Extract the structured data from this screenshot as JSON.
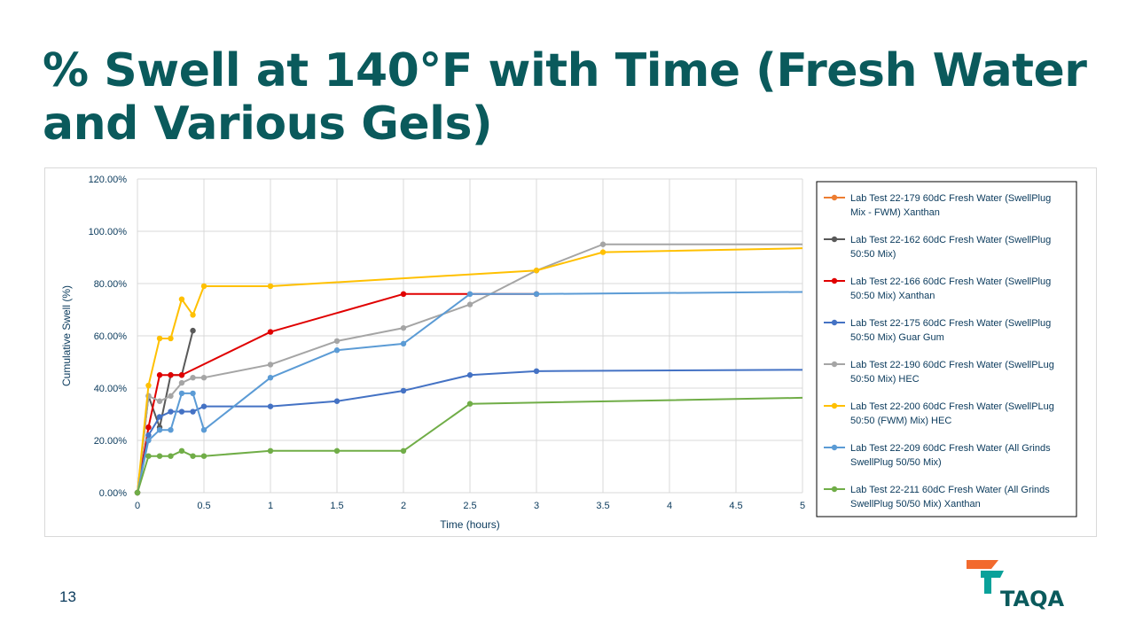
{
  "slide": {
    "title": "% Swell at 140°F with Time (Fresh Water and Various Gels)",
    "page_number": "13",
    "logo_text": "TAQA"
  },
  "chart_data": {
    "type": "line",
    "xlabel": "Time (hours)",
    "ylabel": "Cumulative Swell (%)",
    "xlim": [
      0,
      5
    ],
    "ylim": [
      0,
      120
    ],
    "x_ticks": [
      "0",
      "0.5",
      "1",
      "1.5",
      "2",
      "2.5",
      "3",
      "3.5",
      "4",
      "4.5",
      "5"
    ],
    "y_ticks": [
      "0.00%",
      "20.00%",
      "40.00%",
      "60.00%",
      "80.00%",
      "100.00%",
      "120.00%"
    ],
    "grid": true,
    "legend_position": "right",
    "series": [
      {
        "name": "Lab Test 22-179 60dC Fresh Water (SwellPlug Mix - FWM) Xanthan",
        "color": "#ed7d31",
        "points": [
          [
            0,
            0
          ],
          [
            0.083,
            25
          ]
        ]
      },
      {
        "name": "Lab Test 22-162 60dC Fresh Water (SwellPlug 50:50 Mix)",
        "color": "#595959",
        "points": [
          [
            0,
            0
          ],
          [
            0.083,
            37
          ],
          [
            0.167,
            25
          ],
          [
            0.25,
            45
          ],
          [
            0.333,
            45
          ],
          [
            0.417,
            62
          ]
        ]
      },
      {
        "name": "Lab Test 22-166 60dC Fresh Water (SwellPlug 50:50 Mix) Xanthan",
        "color": "#e00000",
        "points": [
          [
            0,
            0
          ],
          [
            0.083,
            25
          ],
          [
            0.167,
            45
          ],
          [
            0.25,
            45
          ],
          [
            0.333,
            45
          ],
          [
            1,
            61.5
          ],
          [
            2,
            76
          ],
          [
            3,
            76
          ]
        ]
      },
      {
        "name": "Lab Test 22-175 60dC Fresh Water (SwellPlug 50:50 Mix) Guar Gum",
        "color": "#4472c4",
        "points": [
          [
            0,
            0
          ],
          [
            0.083,
            22
          ],
          [
            0.167,
            29
          ],
          [
            0.25,
            31
          ],
          [
            0.333,
            31
          ],
          [
            0.417,
            31
          ],
          [
            0.5,
            33
          ],
          [
            1,
            33
          ],
          [
            1.5,
            35
          ],
          [
            2,
            39
          ],
          [
            2.5,
            45
          ],
          [
            3,
            46.5
          ],
          [
            5,
            47
          ]
        ]
      },
      {
        "name": "Lab Test 22-190 60dC Fresh Water (SwellPLug 50:50 Mix) HEC",
        "color": "#a5a5a5",
        "points": [
          [
            0,
            0
          ],
          [
            0.083,
            37
          ],
          [
            0.167,
            35
          ],
          [
            0.25,
            37
          ],
          [
            0.333,
            42
          ],
          [
            0.417,
            44
          ],
          [
            0.5,
            44
          ],
          [
            1,
            49
          ],
          [
            1.5,
            58
          ],
          [
            2,
            63
          ],
          [
            2.5,
            72
          ],
          [
            3,
            85
          ],
          [
            3.5,
            95
          ],
          [
            5,
            95
          ]
        ]
      },
      {
        "name": "Lab Test 22-200 60dC Fresh Water (SwellPLug 50:50 (FWM) Mix) HEC",
        "color": "#ffc000",
        "points": [
          [
            0,
            0
          ],
          [
            0.083,
            41
          ],
          [
            0.167,
            59
          ],
          [
            0.25,
            59
          ],
          [
            0.333,
            74
          ],
          [
            0.417,
            68
          ],
          [
            0.5,
            79
          ],
          [
            1,
            79
          ],
          [
            3,
            85
          ],
          [
            3.5,
            92
          ],
          [
            5,
            93.5
          ]
        ]
      },
      {
        "name": "Lab Test 22-209 60dC Fresh Water (All Grinds SwellPlug 50/50 Mix)",
        "color": "#5b9bd5",
        "points": [
          [
            0,
            0
          ],
          [
            0.083,
            20
          ],
          [
            0.167,
            24
          ],
          [
            0.25,
            24
          ],
          [
            0.333,
            38
          ],
          [
            0.417,
            38
          ],
          [
            0.5,
            24
          ],
          [
            1,
            44
          ],
          [
            1.5,
            54.5
          ],
          [
            2,
            57
          ],
          [
            2.5,
            76
          ],
          [
            3,
            76
          ],
          [
            5,
            76.8
          ]
        ]
      },
      {
        "name": "Lab Test 22-211 60dC Fresh Water (All Grinds SwellPlug 50/50 Mix) Xanthan",
        "color": "#70ad47",
        "points": [
          [
            0,
            0
          ],
          [
            0.083,
            14
          ],
          [
            0.167,
            14
          ],
          [
            0.25,
            14
          ],
          [
            0.333,
            16
          ],
          [
            0.417,
            14
          ],
          [
            0.5,
            14
          ],
          [
            1,
            16
          ],
          [
            1.5,
            16
          ],
          [
            2,
            16
          ],
          [
            2.5,
            34
          ],
          [
            5,
            36.3
          ]
        ]
      }
    ]
  },
  "legend_lines": [
    [
      "Lab Test 22-179 60dC Fresh Water (SwellPlug",
      "Mix - FWM) Xanthan"
    ],
    [
      "Lab Test 22-162 60dC Fresh Water (SwellPlug",
      "50:50 Mix)"
    ],
    [
      "Lab Test 22-166 60dC Fresh Water (SwellPlug",
      "50:50 Mix) Xanthan"
    ],
    [
      "Lab Test 22-175 60dC Fresh Water (SwellPlug",
      "50:50 Mix) Guar Gum"
    ],
    [
      "Lab Test 22-190 60dC Fresh Water (SwellPLug",
      "50:50 Mix) HEC"
    ],
    [
      "Lab Test 22-200 60dC Fresh Water (SwellPLug",
      "50:50 (FWM) Mix) HEC"
    ],
    [
      "Lab Test 22-209 60dC Fresh Water (All Grinds",
      "SwellPlug 50/50 Mix)"
    ],
    [
      "Lab Test 22-211 60dC Fresh Water (All Grinds",
      "SwellPlug 50/50 Mix) Xanthan"
    ]
  ]
}
